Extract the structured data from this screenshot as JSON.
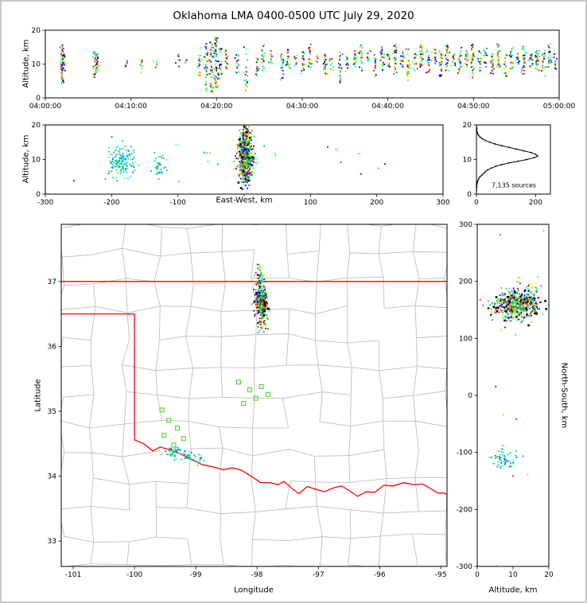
{
  "title": "Oklahoma LMA 0400-0500 UTC July 29, 2020",
  "colors": {
    "rainbow": [
      "#00008b",
      "#0000ff",
      "#0080ff",
      "#00ffff",
      "#00ff80",
      "#00ff00",
      "#80ff00",
      "#ffff00",
      "#ff8000",
      "#ff0000",
      "#8b0000"
    ],
    "cool": [
      "#00ffff",
      "#00e6cc",
      "#00cc99",
      "#33cc33",
      "#0099ff",
      "#007f7f"
    ],
    "station": "#55dd33",
    "state_border": "#ff0000",
    "county": "#b8b8b8",
    "hist_line": "#000000"
  },
  "chart_data": {
    "time_height": {
      "type": "scatter",
      "ylabel": "Altitude, km",
      "ylim": [
        0,
        20
      ],
      "yticks": [
        0,
        10,
        20
      ],
      "xlim_seconds": [
        0,
        3600
      ],
      "xticks_seconds": [
        0,
        600,
        1200,
        1800,
        2400,
        3000,
        3600
      ],
      "xtick_labels": [
        "04:00:00",
        "04:10:00",
        "04:20:00",
        "04:30:00",
        "04:40:00",
        "04:50:00",
        "05:00:00"
      ],
      "streaks": [
        [
          2.0,
          4,
          16,
          55
        ],
        [
          2.15,
          8,
          13,
          20
        ],
        [
          5.8,
          6,
          14,
          28
        ],
        [
          6.05,
          8,
          13,
          18
        ],
        [
          9.5,
          9,
          11,
          6
        ],
        [
          11.2,
          7,
          12,
          10
        ],
        [
          13.0,
          9,
          12,
          6
        ],
        [
          15.5,
          9,
          13,
          8
        ],
        [
          16.5,
          10,
          12,
          5
        ],
        [
          18.0,
          6,
          15,
          22
        ],
        [
          18.8,
          2,
          16,
          30
        ],
        [
          19.4,
          1,
          17,
          45
        ],
        [
          19.9,
          3,
          18,
          55
        ],
        [
          20.4,
          5,
          15,
          28
        ],
        [
          21.1,
          8,
          14,
          16
        ],
        [
          22.4,
          7,
          13,
          14
        ],
        [
          23.4,
          2,
          15,
          20
        ],
        [
          24.7,
          6,
          12,
          14
        ],
        [
          25.4,
          8,
          16,
          22
        ],
        [
          26.4,
          10,
          14,
          10
        ],
        [
          27.7,
          5,
          13,
          18
        ],
        [
          28.4,
          8,
          15,
          20
        ],
        [
          29.2,
          9,
          13,
          9
        ],
        [
          30.1,
          7,
          14,
          16
        ],
        [
          30.9,
          9,
          16,
          18
        ],
        [
          31.7,
          10,
          13,
          7
        ],
        [
          32.7,
          6,
          14,
          22
        ],
        [
          33.4,
          8,
          12,
          10
        ],
        [
          34.4,
          4,
          15,
          22
        ],
        [
          35.2,
          7,
          13,
          13
        ],
        [
          36.1,
          9,
          14,
          16
        ],
        [
          36.9,
          8,
          16,
          26
        ],
        [
          37.7,
          10,
          14,
          10
        ],
        [
          38.5,
          6,
          13,
          18
        ],
        [
          39.3,
          8,
          15,
          22
        ],
        [
          40.1,
          9,
          13,
          13
        ],
        [
          40.9,
          7,
          16,
          30
        ],
        [
          41.7,
          9,
          14,
          16
        ],
        [
          42.4,
          5,
          15,
          26
        ],
        [
          43.2,
          8,
          13,
          13
        ],
        [
          43.9,
          9,
          16,
          24
        ],
        [
          44.7,
          7,
          14,
          18
        ],
        [
          45.4,
          10,
          15,
          13
        ],
        [
          46.2,
          6,
          14,
          26
        ],
        [
          46.9,
          8,
          16,
          30
        ],
        [
          47.7,
          9,
          13,
          13
        ],
        [
          48.4,
          7,
          15,
          22
        ],
        [
          49.2,
          9,
          14,
          17
        ],
        [
          49.9,
          5,
          16,
          34
        ],
        [
          50.7,
          8,
          14,
          19
        ],
        [
          51.4,
          9,
          15,
          16
        ],
        [
          52.2,
          7,
          13,
          22
        ],
        [
          52.9,
          9,
          16,
          26
        ],
        [
          53.7,
          6,
          14,
          17
        ],
        [
          54.4,
          8,
          15,
          24
        ],
        [
          55.2,
          10,
          14,
          13
        ],
        [
          55.9,
          7,
          16,
          30
        ],
        [
          56.7,
          9,
          13,
          15
        ],
        [
          57.4,
          8,
          15,
          26
        ],
        [
          58.2,
          6,
          14,
          19
        ],
        [
          58.9,
          9,
          16,
          22
        ],
        [
          59.5,
          8,
          13,
          13
        ]
      ]
    },
    "ew_height": {
      "type": "scatter",
      "xlabel": "East-West, km",
      "ylabel": "Altitude, km",
      "xlim": [
        -300,
        300
      ],
      "xticks": [
        -300,
        -200,
        -100,
        0,
        100,
        200,
        300
      ],
      "ylim": [
        0,
        20
      ],
      "yticks": [
        0,
        10,
        20
      ],
      "clusters": [
        {
          "cx": -185,
          "sx": 10,
          "cy": 9.5,
          "sy": 2.2,
          "n": 140,
          "palette": "cool"
        },
        {
          "cx": -128,
          "sx": 5,
          "cy": 8,
          "sy": 1.8,
          "n": 35,
          "palette": "cool"
        },
        {
          "cx": 2,
          "sx": 5,
          "cy": 10.5,
          "sy": 3.4,
          "n": 620,
          "palette": "rainbow",
          "black_frac": 0.08
        },
        {
          "cx": 2,
          "sx": 3,
          "cy": 16.5,
          "sy": 1.2,
          "n": 50,
          "palette": "rainbow"
        },
        {
          "cx": 0,
          "sx": 110,
          "cy": 9,
          "sy": 3.5,
          "n": 22,
          "palette": "rainbow"
        }
      ]
    },
    "altitude_histogram": {
      "type": "line",
      "annotation": "7,135 sources",
      "xlim": [
        0,
        250
      ],
      "xticks": [
        0,
        200
      ],
      "ylim": [
        0,
        20
      ],
      "yticks": [
        20,
        10,
        0
      ],
      "profile_alt": [
        0,
        1,
        2,
        3,
        3.5,
        4,
        4.5,
        5,
        5.5,
        6,
        6.5,
        7,
        7.5,
        8,
        8.5,
        9,
        9.5,
        10,
        10.5,
        11,
        11.5,
        12,
        12.5,
        13,
        13.5,
        14,
        14.5,
        15,
        15.5,
        16,
        16.5,
        17,
        17.5,
        18,
        19,
        20
      ],
      "profile_count": [
        0,
        0,
        1,
        2,
        3,
        5,
        8,
        12,
        18,
        25,
        30,
        38,
        50,
        65,
        85,
        110,
        140,
        170,
        195,
        207,
        200,
        185,
        160,
        135,
        110,
        85,
        62,
        45,
        30,
        20,
        12,
        7,
        4,
        2,
        1,
        0
      ]
    },
    "map": {
      "type": "scatter",
      "xlabel": "Longitude",
      "ylabel": "Latitude",
      "xlim": [
        -101.195,
        -94.9
      ],
      "ylim": [
        32.61,
        37.88
      ],
      "xticks": [
        -101,
        -100,
        -99,
        -98,
        -97,
        -96,
        -95
      ],
      "yticks": [
        33,
        34,
        35,
        36,
        37
      ],
      "state_border": {
        "north_lat": 37.0,
        "panhandle_lat": 36.5,
        "west_lon": -100.0,
        "red_river": [
          [
            -100,
            34.56
          ],
          [
            -99.85,
            34.5
          ],
          [
            -99.7,
            34.39
          ],
          [
            -99.58,
            34.45
          ],
          [
            -99.4,
            34.4
          ],
          [
            -99.22,
            34.33
          ],
          [
            -99.05,
            34.25
          ],
          [
            -98.9,
            34.18
          ],
          [
            -98.7,
            34.14
          ],
          [
            -98.55,
            34.1
          ],
          [
            -98.4,
            34.13
          ],
          [
            -98.25,
            34.09
          ],
          [
            -98.08,
            33.99
          ],
          [
            -97.94,
            33.9
          ],
          [
            -97.8,
            33.9
          ],
          [
            -97.66,
            33.87
          ],
          [
            -97.56,
            33.92
          ],
          [
            -97.44,
            33.82
          ],
          [
            -97.32,
            33.73
          ],
          [
            -97.18,
            33.84
          ],
          [
            -97.05,
            33.8
          ],
          [
            -96.9,
            33.76
          ],
          [
            -96.75,
            33.82
          ],
          [
            -96.62,
            33.85
          ],
          [
            -96.5,
            33.78
          ],
          [
            -96.36,
            33.69
          ],
          [
            -96.22,
            33.76
          ],
          [
            -96.08,
            33.75
          ],
          [
            -95.93,
            33.86
          ],
          [
            -95.78,
            33.85
          ],
          [
            -95.6,
            33.9
          ],
          [
            -95.45,
            33.87
          ],
          [
            -95.3,
            33.88
          ],
          [
            -95.15,
            33.8
          ],
          [
            -95.05,
            33.74
          ],
          [
            -94.95,
            33.74
          ],
          [
            -94.9,
            33.72
          ]
        ]
      },
      "clusters": [
        {
          "clon": -97.93,
          "slon": 0.045,
          "clat": 36.68,
          "slat": 0.12,
          "n": 420,
          "palette": "rainbow",
          "black_frac": 0.09
        },
        {
          "clon": -97.95,
          "slon": 0.035,
          "clat": 36.98,
          "slat": 0.15,
          "n": 70,
          "palette": "rainbow"
        },
        {
          "clon": -97.9,
          "slon": 0.05,
          "clat": 36.33,
          "slat": 0.09,
          "n": 28,
          "palette": "rainbow"
        },
        {
          "clon": -99.35,
          "slon": 0.07,
          "clat": 34.36,
          "slat": 0.05,
          "n": 45,
          "palette": "cool"
        },
        {
          "clon": -99.12,
          "slon": 0.05,
          "clat": 34.3,
          "slat": 0.04,
          "n": 25,
          "palette": "cool"
        },
        {
          "clon": -98.93,
          "slon": 0.04,
          "clat": 34.27,
          "slat": 0.035,
          "n": 12,
          "palette": "cool"
        }
      ],
      "stations": [
        [
          -98.3,
          35.45
        ],
        [
          -98.12,
          35.33
        ],
        [
          -97.93,
          35.38
        ],
        [
          -98.02,
          35.2
        ],
        [
          -97.82,
          35.26
        ],
        [
          -98.22,
          35.12
        ],
        [
          -99.55,
          35.02
        ],
        [
          -99.44,
          34.86
        ],
        [
          -99.3,
          34.74
        ],
        [
          -99.52,
          34.63
        ],
        [
          -99.2,
          34.58
        ],
        [
          -99.36,
          34.48
        ]
      ],
      "county_grid": {
        "lon_step": 0.53,
        "lat_step": 0.43,
        "jitter": 0.07,
        "skip": 0.16,
        "seed": 42
      }
    },
    "ns_height": {
      "type": "scatter",
      "xlabel": "Altitude, km",
      "ylabel": "North-South, km",
      "xlim": [
        0,
        20
      ],
      "xticks": [
        0,
        10,
        20
      ],
      "ylim": [
        -300,
        300
      ],
      "yticks": [
        300,
        200,
        100,
        0,
        -100,
        -200,
        -300
      ],
      "clusters": [
        {
          "cx": 11,
          "sx": 3.2,
          "cy": 158,
          "sy": 12,
          "n": 520,
          "palette": "rainbow",
          "black_frac": 0.08
        },
        {
          "cx": 13.5,
          "sx": 2.2,
          "cy": 172,
          "sy": 14,
          "n": 70,
          "palette": "rainbow"
        },
        {
          "cx": 8,
          "sx": 2,
          "cy": -112,
          "sy": 9,
          "n": 55,
          "palette": "cool"
        },
        {
          "cx": 10,
          "sx": 4,
          "cy": 60,
          "sy": 160,
          "n": 14,
          "palette": "rainbow"
        }
      ]
    }
  }
}
